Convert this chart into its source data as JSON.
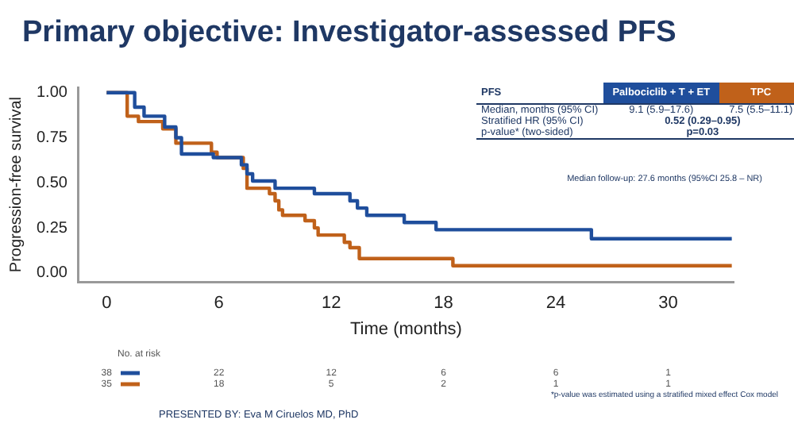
{
  "chart_data": {
    "type": "step",
    "title": "Primary objective: Investigator-assessed PFS",
    "xlabel": "Time (months)",
    "ylabel": "Progression-free survival",
    "xlim": [
      -1.5,
      33.5
    ],
    "xticks": [
      0,
      6,
      12,
      18,
      24,
      30
    ],
    "ylim": [
      -0.05,
      1.03
    ],
    "yticks": [
      {
        "value": 0,
        "label": "0.00"
      },
      {
        "value": 0.25,
        "label": "0.25"
      },
      {
        "value": 0.5,
        "label": "0.50"
      },
      {
        "value": 0.75,
        "label": "0.75"
      },
      {
        "value": 1,
        "label": "1.00"
      }
    ],
    "grid": false,
    "legend": false,
    "marker": "none",
    "line_style": "solid",
    "series": [
      {
        "name": "Palbociclib + T + ET",
        "color": "#1f4e9c",
        "x": [
          0,
          1.5,
          2,
          3.1,
          3.7,
          4.0,
          5.7,
          7.2,
          7.5,
          7.8,
          9.0,
          11.1,
          13.0,
          13.4,
          13.9,
          15.9,
          17.6,
          25.9,
          33.4
        ],
        "values": [
          1,
          0.92,
          0.87,
          0.81,
          0.75,
          0.66,
          0.64,
          0.6,
          0.55,
          0.51,
          0.47,
          0.44,
          0.4,
          0.36,
          0.32,
          0.28,
          0.24,
          0.19,
          0.19
        ]
      },
      {
        "name": "TPC",
        "color": "#c0611a",
        "x": [
          0,
          1.1,
          1.7,
          3.0,
          3.7,
          5.6,
          5.9,
          7.3,
          7.5,
          8.7,
          9.0,
          9.2,
          9.4,
          10.6,
          11.1,
          11.3,
          12.7,
          13.0,
          13.5,
          18.5,
          33.4
        ],
        "values": [
          1,
          0.87,
          0.84,
          0.8,
          0.72,
          0.67,
          0.64,
          0.58,
          0.47,
          0.44,
          0.4,
          0.35,
          0.32,
          0.29,
          0.25,
          0.21,
          0.17,
          0.14,
          0.08,
          0.04,
          0.04
        ]
      }
    ],
    "annotations": [
      "No. at risk",
      "38",
      "22",
      "12",
      "6",
      "6",
      "1",
      "35",
      "18",
      "5",
      "2",
      "1",
      "1",
      "PFS",
      "Median, months (95% CI)",
      "9.1 (5.9–17.6)",
      "7.5 (5.5–11.1)",
      "Stratified HR (95% CI)",
      "0.52 (0.29–0.95)",
      "p-value* (two-sided)",
      "p=0.03",
      "Median follow-up: 27.6 months (95%CI 25.8 – NR)",
      "*p-value was estimated using a stratified mixed effect Cox model",
      "PRESENTED BY: Eva M Ciruelos MD, PhD"
    ]
  }
}
